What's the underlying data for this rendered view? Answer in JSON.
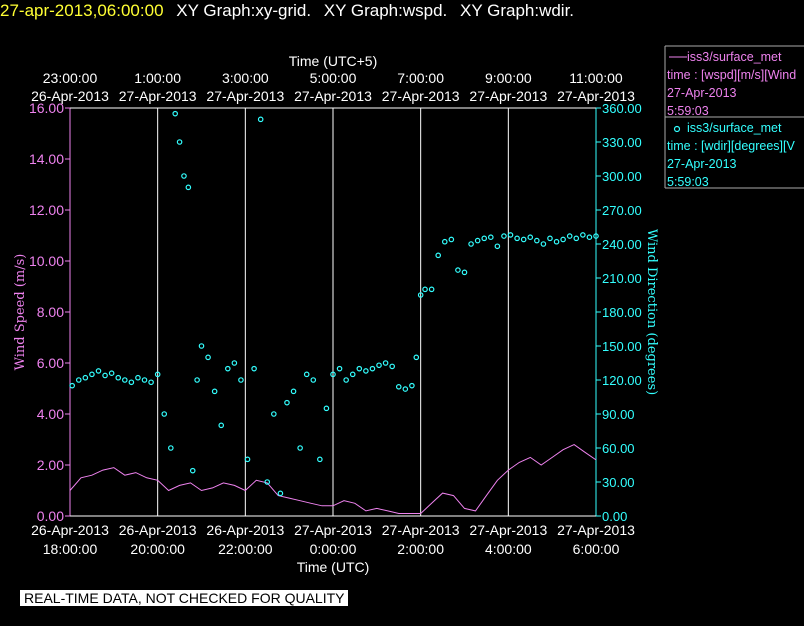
{
  "header": {
    "datetime": "27-apr-2013,06:00:00",
    "graphs": [
      "XY Graph:xy-grid.",
      "XY Graph:wspd.",
      "XY Graph:wdir."
    ]
  },
  "footer": {
    "notice": "REAL-TIME DATA, NOT CHECKED FOR QUALITY"
  },
  "legend": [
    {
      "marker": "line",
      "lines": [
        "iss3/surface_met",
        "time : [wspd][m/s][Wind",
        "27-Apr-2013",
        "5:59:03"
      ],
      "color": "#ee82ee"
    },
    {
      "marker": "circle",
      "lines": [
        "iss3/surface_met",
        "time : [wdir][degrees][V",
        "27-Apr-2013",
        "5:59:03"
      ],
      "color": "#33ffff"
    }
  ],
  "colors": {
    "wspd": "#ee82ee",
    "wdir": "#33ffff",
    "grid": "#ffffff",
    "date": "#ffff33",
    "axes_text": "#ffffff"
  },
  "chart_data": {
    "type": "line",
    "top_axis": {
      "title": "Time (UTC+5)",
      "ticks": [
        {
          "t": 18,
          "time": "23:00:00",
          "date": "26-Apr-2013"
        },
        {
          "t": 20,
          "time": "1:00:00",
          "date": "27-Apr-2013"
        },
        {
          "t": 22,
          "time": "3:00:00",
          "date": "27-Apr-2013"
        },
        {
          "t": 24,
          "time": "5:00:00",
          "date": "27-Apr-2013"
        },
        {
          "t": 26,
          "time": "7:00:00",
          "date": "27-Apr-2013"
        },
        {
          "t": 28,
          "time": "9:00:00",
          "date": "27-Apr-2013"
        },
        {
          "t": 30,
          "time": "11:00:00",
          "date": "27-Apr-2013"
        }
      ]
    },
    "bottom_axis": {
      "title": "Time (UTC)",
      "ticks": [
        {
          "t": 18,
          "date": "26-Apr-2013",
          "time": "18:00:00"
        },
        {
          "t": 20,
          "date": "26-Apr-2013",
          "time": "20:00:00"
        },
        {
          "t": 22,
          "date": "26-Apr-2013",
          "time": "22:00:00"
        },
        {
          "t": 24,
          "date": "27-Apr-2013",
          "time": "0:00:00"
        },
        {
          "t": 26,
          "date": "27-Apr-2013",
          "time": "2:00:00"
        },
        {
          "t": 28,
          "date": "27-Apr-2013",
          "time": "4:00:00"
        },
        {
          "t": 30,
          "date": "27-Apr-2013",
          "time": "6:00:00"
        }
      ]
    },
    "xlim": [
      18,
      30
    ],
    "left_axis": {
      "label": "Wind Speed (m/s)",
      "lim": [
        0,
        16
      ],
      "ticks": [
        "0.00",
        "2.00",
        "4.00",
        "6.00",
        "8.00",
        "10.00",
        "12.00",
        "14.00",
        "16.00"
      ]
    },
    "right_axis": {
      "label": "Wind Direction (degrees)",
      "lim": [
        0,
        360
      ],
      "ticks": [
        "0.00",
        "30.00",
        "60.00",
        "90.00",
        "120.00",
        "150.00",
        "180.00",
        "210.00",
        "240.00",
        "270.00",
        "300.00",
        "330.00",
        "360.00"
      ]
    },
    "grid": "vertical",
    "series": [
      {
        "key": "wspd",
        "marker": "line",
        "x": [
          18.0,
          18.25,
          18.5,
          18.75,
          19.0,
          19.25,
          19.5,
          19.75,
          20.0,
          20.25,
          20.5,
          20.75,
          21.0,
          21.25,
          21.5,
          21.75,
          22.0,
          22.25,
          22.5,
          22.75,
          23.0,
          23.25,
          23.5,
          23.75,
          24.0,
          24.25,
          24.5,
          24.75,
          25.0,
          25.25,
          25.5,
          25.75,
          26.0,
          26.25,
          26.5,
          26.75,
          27.0,
          27.25,
          27.5,
          27.75,
          28.0,
          28.25,
          28.5,
          28.75,
          29.0,
          29.25,
          29.5,
          29.75,
          30.0
        ],
        "y": [
          1.0,
          1.5,
          1.6,
          1.8,
          1.9,
          1.6,
          1.7,
          1.5,
          1.4,
          1.0,
          1.2,
          1.3,
          1.0,
          1.1,
          1.3,
          1.2,
          1.0,
          1.4,
          1.3,
          0.8,
          0.7,
          0.6,
          0.5,
          0.4,
          0.4,
          0.6,
          0.5,
          0.2,
          0.3,
          0.2,
          0.1,
          0.1,
          0.1,
          0.5,
          0.9,
          0.8,
          0.3,
          0.2,
          0.8,
          1.4,
          1.8,
          2.1,
          2.3,
          2.0,
          2.3,
          2.6,
          2.8,
          2.5,
          2.2
        ]
      },
      {
        "key": "wdir",
        "marker": "circle",
        "x": [
          18.05,
          18.2,
          18.35,
          18.5,
          18.65,
          18.8,
          18.95,
          19.1,
          19.25,
          19.4,
          19.55,
          19.7,
          19.85,
          20.0,
          20.15,
          20.3,
          20.4,
          20.5,
          20.6,
          20.7,
          20.8,
          20.9,
          21.0,
          21.15,
          21.3,
          21.45,
          21.6,
          21.75,
          21.9,
          22.05,
          22.2,
          22.35,
          22.5,
          22.65,
          22.8,
          22.95,
          23.1,
          23.25,
          23.4,
          23.55,
          23.7,
          23.85,
          24.0,
          24.15,
          24.3,
          24.45,
          24.6,
          24.75,
          24.9,
          25.05,
          25.2,
          25.35,
          25.5,
          25.65,
          25.8,
          25.9,
          26.0,
          26.1,
          26.25,
          26.4,
          26.55,
          26.7,
          26.85,
          27.0,
          27.15,
          27.3,
          27.45,
          27.6,
          27.75,
          27.9,
          28.05,
          28.2,
          28.35,
          28.5,
          28.65,
          28.8,
          28.95,
          29.1,
          29.25,
          29.4,
          29.55,
          29.7,
          29.85,
          30.0
        ],
        "y": [
          115,
          120,
          122,
          125,
          128,
          124,
          126,
          122,
          120,
          118,
          122,
          120,
          118,
          125,
          90,
          60,
          355,
          330,
          300,
          290,
          40,
          120,
          150,
          140,
          110,
          80,
          130,
          135,
          120,
          50,
          130,
          350,
          30,
          90,
          20,
          100,
          110,
          60,
          125,
          120,
          50,
          95,
          125,
          130,
          120,
          125,
          130,
          128,
          130,
          133,
          135,
          132,
          114,
          112,
          115,
          140,
          195,
          200,
          200,
          230,
          242,
          244,
          217,
          215,
          240,
          243,
          245,
          246,
          238,
          247,
          248,
          245,
          244,
          246,
          243,
          240,
          245,
          242,
          244,
          247,
          245,
          248,
          246,
          247
        ]
      }
    ]
  }
}
